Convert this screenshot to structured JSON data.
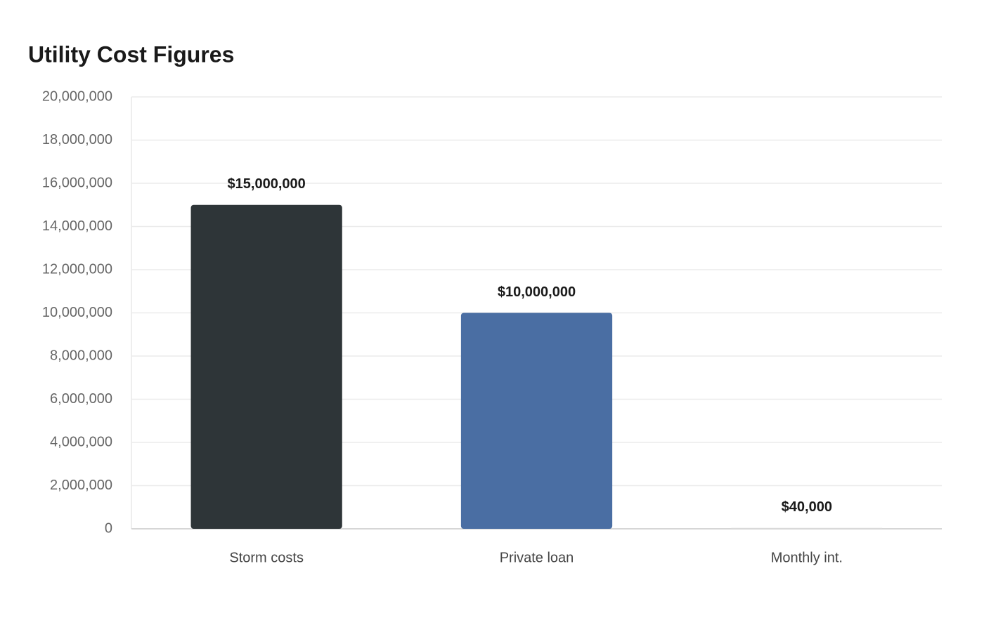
{
  "chart_data": {
    "type": "bar",
    "title": "Utility Cost Figures",
    "categories": [
      "Storm costs",
      "Private loan",
      "Monthly int."
    ],
    "values": [
      15000000,
      10000000,
      40000
    ],
    "value_labels": [
      "$15,000,000",
      "$10,000,000",
      "$40,000"
    ],
    "colors": [
      "#2e3538",
      "#4a6ea3",
      "#d9d9d9"
    ],
    "ylim": [
      0,
      20000000
    ],
    "yticks": [
      0,
      {
        "value": 2000000,
        "label": "2,000,000"
      },
      {
        "value": 4000000,
        "label": "4,000,000"
      },
      {
        "value": 6000000,
        "label": "6,000,000"
      },
      {
        "value": 8000000,
        "label": "8,000,000"
      },
      {
        "value": 10000000,
        "label": "10,000,000"
      },
      {
        "value": 12000000,
        "label": "12,000,000"
      },
      {
        "value": 14000000,
        "label": "14,000,000"
      },
      {
        "value": 16000000,
        "label": "16,000,000"
      },
      {
        "value": 18000000,
        "label": "18,000,000"
      },
      {
        "value": 20000000,
        "label": "20,000,000"
      }
    ],
    "grid": true
  }
}
